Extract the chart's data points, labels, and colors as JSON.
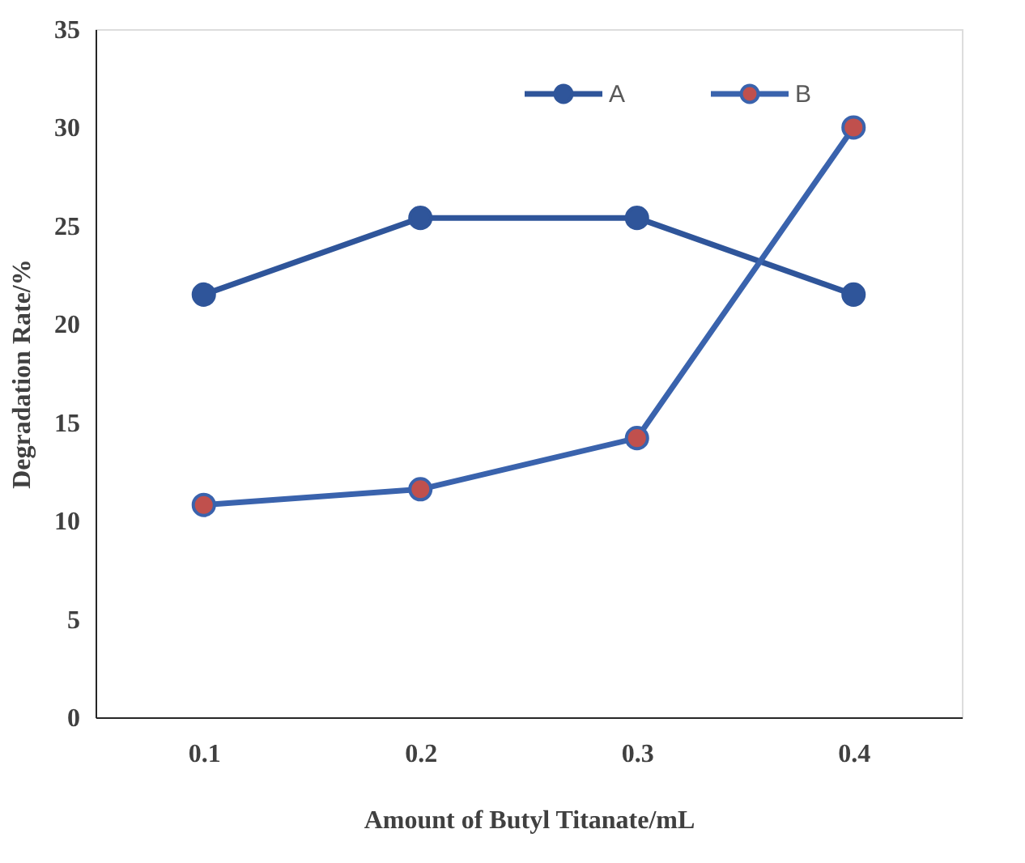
{
  "chart_data": {
    "type": "line",
    "xlabel": "Amount of Butyl Titanate/mL",
    "ylabel": "Degradation Rate/%",
    "categories": [
      "0.1",
      "0.2",
      "0.3",
      "0.4"
    ],
    "series": [
      {
        "name": "A",
        "color": "#2f559a",
        "values": [
          21.5,
          25.4,
          25.4,
          21.5
        ]
      },
      {
        "name": "B",
        "color": "#3a63ad",
        "colors": [
          "#c0504d",
          "#c0504d",
          "#c0504d",
          "#c0504d"
        ],
        "values": [
          10.8,
          11.6,
          14.2,
          30.0
        ]
      }
    ],
    "ylim": [
      0,
      35
    ],
    "yticks": [
      0,
      5,
      10,
      15,
      20,
      25,
      30,
      35
    ],
    "grid": false,
    "legend": "top right",
    "marker": "circle",
    "line_style": "solid"
  }
}
